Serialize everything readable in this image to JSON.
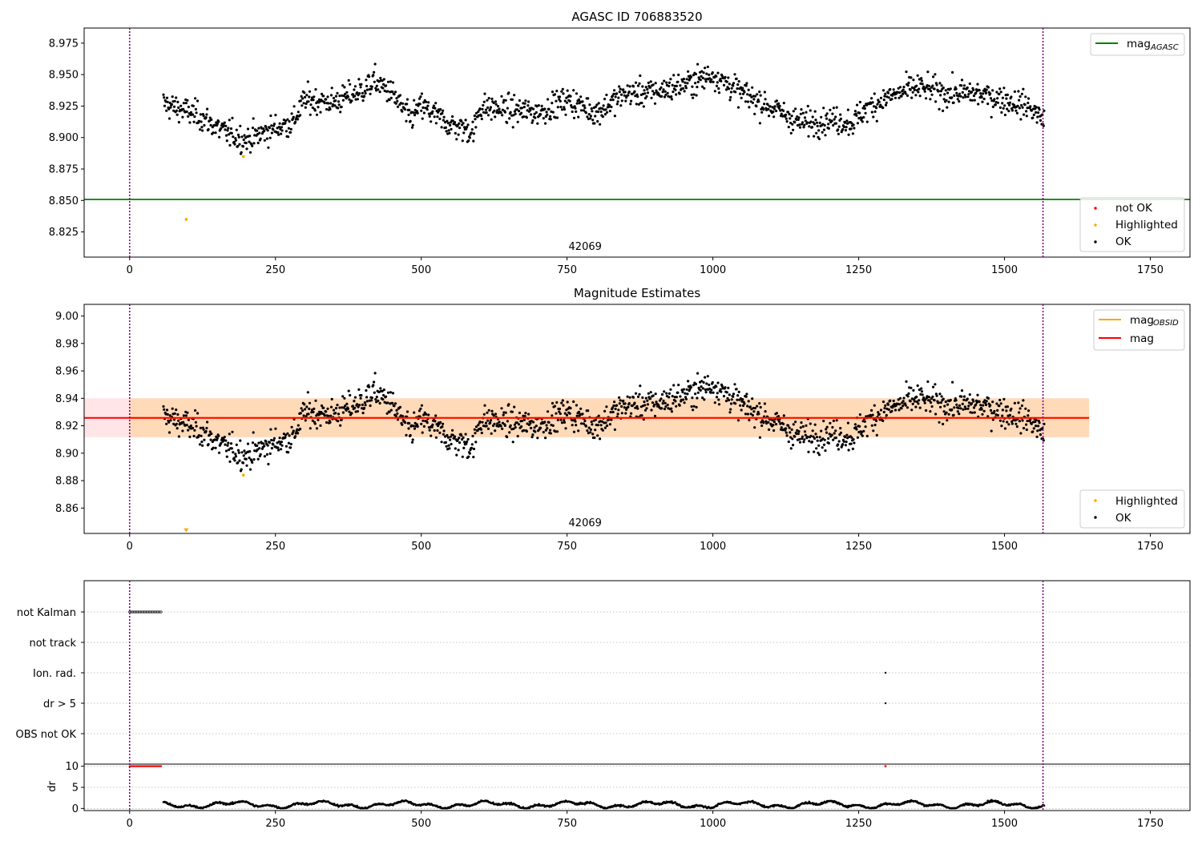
{
  "colors": {
    "agasc_line": "#008000",
    "obsid_line": "#ffa500",
    "mag_line": "#ff0000",
    "ok": "#000000",
    "highlighted": "#ffa500",
    "not_ok": "#ff0000",
    "obsid_band": "#ffdab9",
    "mag_band": "#ffe4e8",
    "vline": "#800080",
    "grid": "#b0b0b0"
  },
  "chart_data": [
    {
      "type": "scatter",
      "title": "AGASC ID 706883520",
      "xlim": [
        -78,
        1818
      ],
      "ylim": [
        8.805,
        8.987
      ],
      "xticks": [
        0,
        250,
        500,
        750,
        1000,
        1250,
        1500,
        1750
      ],
      "yticks": [
        8.825,
        8.85,
        8.875,
        8.9,
        8.925,
        8.95,
        8.975
      ],
      "vlines": [
        0,
        1566
      ],
      "obsid_label": {
        "x": 781,
        "text": "42069"
      },
      "hlines": [
        {
          "name": "mag_AGASC",
          "y": 8.8508
        }
      ],
      "ok_series": {
        "n_points": 1470,
        "x_range": [
          58,
          1568
        ]
      },
      "highlighted": [
        {
          "x": 97,
          "y": 8.835
        },
        {
          "x": 195,
          "y": 8.885
        }
      ],
      "legend_top": {
        "label": "mag",
        "subscript": "AGASC"
      },
      "legend_bottom": [
        {
          "label": "not OK"
        },
        {
          "label": "Highlighted"
        },
        {
          "label": "OK"
        }
      ]
    },
    {
      "type": "scatter",
      "title": "Magnitude Estimates",
      "xlim": [
        -78,
        1818
      ],
      "ylim": [
        8.8415,
        9.0085
      ],
      "xticks": [
        0,
        250,
        500,
        750,
        1000,
        1250,
        1500,
        1750
      ],
      "yticks": [
        8.86,
        8.88,
        8.9,
        8.92,
        8.94,
        8.96,
        8.98,
        9.0
      ],
      "vlines": [
        0,
        1566
      ],
      "obsid_label": {
        "x": 781,
        "text": "42069"
      },
      "mag": 8.9257,
      "mag_band": [
        8.9117,
        8.94
      ],
      "obsid_band": [
        8.9117,
        8.94
      ],
      "band_x": [
        0,
        1645
      ],
      "highlighted": [
        {
          "x": 97,
          "y": 8.8435,
          "marker": "v"
        },
        {
          "x": 195,
          "y": 8.884
        }
      ],
      "legend_top": [
        {
          "label": "mag",
          "subscript": "OBSID"
        },
        {
          "label": "mag"
        }
      ],
      "legend_bottom": [
        {
          "label": "Highlighted"
        },
        {
          "label": "OK"
        }
      ]
    },
    {
      "type": "flags",
      "xlim": [
        -78,
        1818
      ],
      "categories": [
        "not Kalman",
        "not track",
        "Ion. rad.",
        "dr > 5",
        "OBS not OK"
      ],
      "flag_ranges": {
        "not Kalman": [
          0,
          55
        ]
      },
      "flag_points": {
        "Ion. rad.": [
          1296
        ],
        "dr > 5": [
          1296
        ]
      }
    },
    {
      "type": "line",
      "ylabel": "dr",
      "xlim": [
        -78,
        1818
      ],
      "ylim": [
        -0.5,
        10.5
      ],
      "yticks": [
        0,
        5,
        10
      ],
      "xticks": [
        0,
        250,
        500,
        750,
        1000,
        1250,
        1500,
        1750
      ],
      "not_ok_range": [
        0,
        55
      ],
      "not_ok_point": {
        "x": 1296,
        "y": 10
      }
    }
  ]
}
